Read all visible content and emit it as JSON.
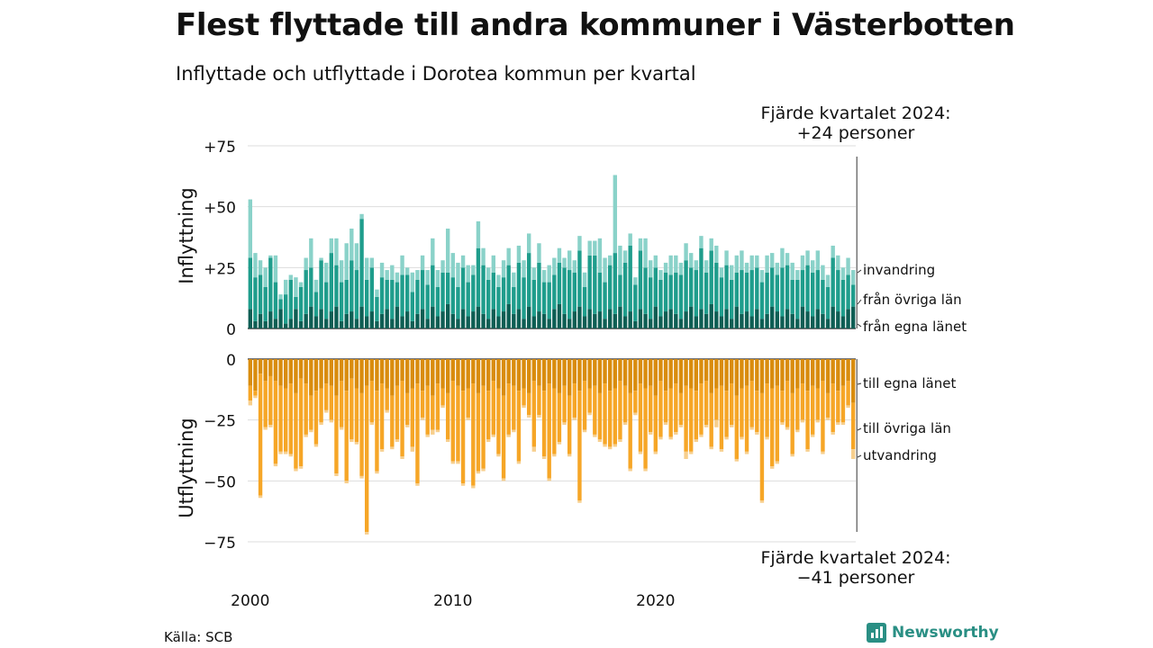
{
  "title": "Flest flyttade till andra kommuner i Västerbotten",
  "subtitle": "Inflyttade och utflyttade i Dorotea kommun per kvartal",
  "source": "Källa: SCB",
  "brand": "Newsworthy",
  "annotation_top": [
    "Fjärde kvartalet 2024:",
    "+24 personer"
  ],
  "annotation_bottom": [
    "Fjärde kvartalet 2024:",
    "−41 personer"
  ],
  "colors": {
    "in_egna": "#0e5e54",
    "in_ovriga": "#1f9d8c",
    "in_invandring": "#8ad2c9",
    "out_egna": "#d98c0e",
    "out_ovriga": "#f6a627",
    "out_utvandring": "#f7cf8d",
    "grid": "#dddddd"
  },
  "chart_data": {
    "type": "bar",
    "stacked": true,
    "x_start": "2000 Q1",
    "x_ticks": [
      "2000",
      "2010",
      "2020"
    ],
    "panels": [
      {
        "ylabel": "Inflyttning",
        "yticks": [
          "+75",
          "+50",
          "+25",
          "0"
        ],
        "ylim": [
          0,
          75
        ],
        "series": [
          {
            "name": "från egna länet",
            "values": [
              8,
              3,
              6,
              3,
              7,
              4,
              8,
              2,
              4,
              8,
              3,
              6,
              9,
              5,
              8,
              4,
              7,
              9,
              3,
              6,
              7,
              4,
              9,
              5,
              7,
              3,
              6,
              8,
              4,
              9,
              5,
              7,
              3,
              6,
              8,
              4,
              9,
              5,
              7,
              10,
              6,
              4,
              8,
              5,
              7,
              9,
              6,
              4,
              8,
              5,
              7,
              10,
              6,
              8,
              4,
              9,
              5,
              7,
              6,
              4,
              8,
              10,
              6,
              4,
              7,
              9,
              5,
              8,
              6,
              7,
              4,
              8,
              6,
              9,
              5,
              7,
              3,
              8,
              6,
              4,
              9,
              5,
              7,
              8,
              6,
              4,
              7,
              9,
              5,
              8,
              6,
              10,
              7,
              5,
              8,
              4,
              9,
              6,
              7,
              5,
              8,
              4,
              6,
              9,
              7,
              5,
              8,
              6,
              4,
              9,
              7,
              5,
              8,
              6,
              4,
              9,
              7,
              5,
              8,
              9
            ]
          },
          {
            "name": "från övriga län",
            "values": [
              21,
              18,
              16,
              14,
              22,
              15,
              4,
              12,
              16,
              5,
              14,
              18,
              16,
              10,
              20,
              15,
              24,
              17,
              16,
              14,
              21,
              20,
              36,
              15,
              18,
              10,
              15,
              12,
              16,
              10,
              17,
              15,
              12,
              14,
              16,
              14,
              17,
              12,
              16,
              13,
              15,
              13,
              17,
              14,
              15,
              24,
              20,
              16,
              15,
              12,
              14,
              16,
              11,
              19,
              17,
              22,
              15,
              20,
              13,
              15,
              14,
              17,
              19,
              20,
              16,
              23,
              12,
              22,
              24,
              16,
              15,
              18,
              25,
              13,
              22,
              27,
              15,
              24,
              19,
              17,
              16,
              15,
              16,
              14,
              17,
              18,
              21,
              16,
              19,
              25,
              17,
              22,
              20,
              16,
              18,
              16,
              14,
              18,
              16,
              19,
              17,
              15,
              17,
              16,
              15,
              20,
              18,
              14,
              16,
              15,
              19,
              18,
              16,
              14,
              13,
              20,
              17,
              15,
              14,
              9
            ]
          },
          {
            "name": "invandring",
            "values": [
              24,
              10,
              6,
              8,
              1,
              11,
              2,
              6,
              2,
              8,
              2,
              5,
              12,
              5,
              1,
              8,
              6,
              11,
              9,
              15,
              13,
              11,
              2,
              9,
              4,
              3,
              6,
              4,
              6,
              4,
              8,
              3,
              8,
              4,
              6,
              6,
              11,
              7,
              5,
              18,
              10,
              10,
              5,
              7,
              4,
              11,
              7,
              5,
              7,
              5,
              7,
              7,
              6,
              7,
              7,
              8,
              5,
              8,
              5,
              7,
              7,
              6,
              4,
              8,
              5,
              6,
              6,
              6,
              6,
              14,
              10,
              4,
              32,
              12,
              5,
              5,
              3,
              5,
              12,
              7,
              5,
              4,
              4,
              8,
              7,
              5,
              7,
              6,
              4,
              5,
              5,
              5,
              7,
              4,
              6,
              6,
              7,
              8,
              4,
              6,
              5,
              5,
              7,
              6,
              5,
              8,
              5,
              7,
              4,
              6,
              6,
              5,
              8,
              6,
              5,
              5,
              6,
              5,
              7,
              6
            ]
          }
        ]
      },
      {
        "ylabel": "Utflyttning",
        "yticks": [
          "0",
          "−25",
          "−50",
          "−75"
        ],
        "ylim": [
          -75,
          0
        ],
        "series": [
          {
            "name": "till egna länet",
            "values": [
              -11,
              -13,
              -6,
              -9,
              -7,
              -9,
              -11,
              -12,
              -10,
              -14,
              -8,
              -10,
              -15,
              -13,
              -12,
              -10,
              -11,
              -15,
              -9,
              -13,
              -8,
              -12,
              -14,
              -11,
              -9,
              -13,
              -10,
              -12,
              -15,
              -11,
              -9,
              -14,
              -12,
              -10,
              -13,
              -11,
              -15,
              -10,
              -12,
              -14,
              -9,
              -11,
              -13,
              -12,
              -10,
              -14,
              -11,
              -13,
              -9,
              -12,
              -15,
              -10,
              -11,
              -13,
              -12,
              -14,
              -9,
              -11,
              -13,
              -10,
              -12,
              -14,
              -11,
              -15,
              -10,
              -13,
              -9,
              -12,
              -11,
              -14,
              -10,
              -13,
              -12,
              -9,
              -11,
              -14,
              -13,
              -10,
              -12,
              -11,
              -15,
              -9,
              -13,
              -12,
              -10,
              -14,
              -11,
              -12,
              -13,
              -10,
              -9,
              -14,
              -12,
              -11,
              -13,
              -10,
              -15,
              -12,
              -11,
              -9,
              -13,
              -14,
              -10,
              -12,
              -11,
              -13,
              -9,
              -14,
              -12,
              -10,
              -13,
              -11,
              -12,
              -9,
              -14,
              -10,
              -13,
              -11,
              -9,
              -18
            ]
          },
          {
            "name": "till övriga län",
            "values": [
              -6,
              -2,
              -50,
              -19,
              -20,
              -34,
              -27,
              -26,
              -29,
              -31,
              -36,
              -21,
              -14,
              -22,
              -14,
              -11,
              -14,
              -32,
              -19,
              -37,
              -25,
              -22,
              -34,
              -60,
              -17,
              -33,
              -27,
              -9,
              -21,
              -22,
              -31,
              -13,
              -24,
              -41,
              -11,
              -20,
              -14,
              -19,
              -7,
              -19,
              -33,
              -31,
              -38,
              -12,
              -42,
              -32,
              -34,
              -20,
              -22,
              -27,
              -34,
              -21,
              -18,
              -29,
              -7,
              -9,
              -27,
              -12,
              -27,
              -39,
              -27,
              -20,
              -15,
              -24,
              -14,
              -45,
              -20,
              -10,
              -20,
              -19,
              -25,
              -23,
              -23,
              -24,
              -15,
              -31,
              -9,
              -28,
              -33,
              -19,
              -23,
              -23,
              -13,
              -20,
              -20,
              -13,
              -27,
              -26,
              -20,
              -21,
              -18,
              -22,
              -13,
              -26,
              -19,
              -17,
              -26,
              -20,
              -27,
              -19,
              -17,
              -44,
              -22,
              -32,
              -31,
              -13,
              -19,
              -25,
              -17,
              -15,
              -24,
              -20,
              -13,
              -29,
              -10,
              -20,
              -13,
              -15,
              -10,
              -19
            ]
          },
          {
            "name": "utvandring",
            "values": [
              -2,
              -1,
              -1,
              -1,
              -1,
              -1,
              -1,
              -1,
              -1,
              -1,
              -1,
              -1,
              -1,
              -1,
              -1,
              -1,
              -1,
              -1,
              -1,
              -1,
              -1,
              -1,
              -1,
              -1,
              -1,
              -1,
              -1,
              -1,
              -1,
              -1,
              -1,
              -1,
              -2,
              -1,
              -1,
              -1,
              -2,
              -1,
              -1,
              -1,
              -1,
              -1,
              -1,
              -1,
              -1,
              -1,
              -1,
              -1,
              -1,
              -1,
              -1,
              -1,
              -1,
              -1,
              -1,
              -1,
              -2,
              -1,
              -1,
              -1,
              -1,
              -1,
              -1,
              -1,
              -1,
              -1,
              -1,
              -1,
              -1,
              -1,
              -1,
              -1,
              -1,
              -1,
              -1,
              -1,
              -1,
              -1,
              -1,
              -1,
              -1,
              -1,
              -1,
              -1,
              -1,
              -1,
              -3,
              -1,
              -1,
              -1,
              -1,
              -1,
              -3,
              -1,
              -1,
              -1,
              -1,
              -1,
              -1,
              -1,
              -1,
              -1,
              -1,
              -1,
              -1,
              -1,
              -1,
              -1,
              -1,
              -1,
              -1,
              -1,
              -1,
              -1,
              -1,
              -1,
              -1,
              -1,
              -1,
              -4
            ]
          }
        ]
      }
    ],
    "grid": true,
    "legend_placement": "right, inline labels"
  }
}
